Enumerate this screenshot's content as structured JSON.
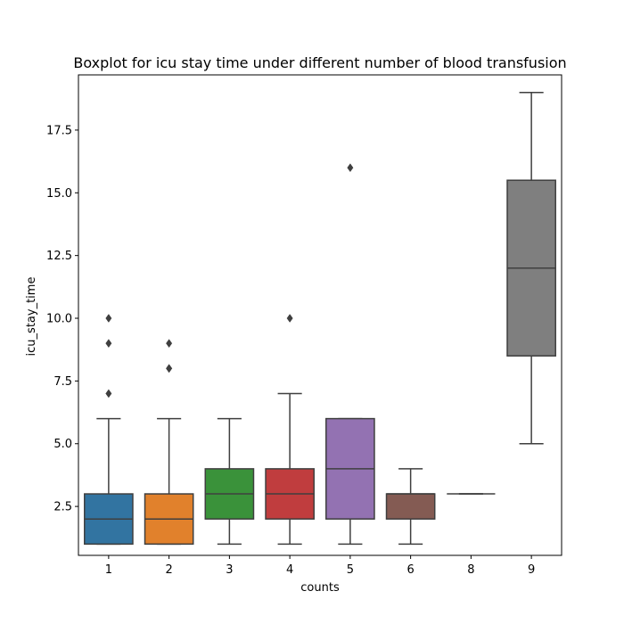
{
  "chart_data": {
    "type": "box",
    "title": "Boxplot for icu stay time under different number of blood transfusion",
    "xlabel": "counts",
    "ylabel": "icu_stay_time",
    "ylim": [
      0.55,
      19.7
    ],
    "yticks": [
      2.5,
      5.0,
      7.5,
      10.0,
      12.5,
      15.0,
      17.5
    ],
    "ytick_labels": [
      "2.5",
      "5.0",
      "7.5",
      "10.0",
      "12.5",
      "15.0",
      "17.5"
    ],
    "grid": false,
    "legend": "none",
    "categories": [
      "1",
      "2",
      "3",
      "4",
      "5",
      "6",
      "8",
      "9"
    ],
    "boxes": [
      {
        "category": "1",
        "whisker_low": 1,
        "q1": 1,
        "median": 2,
        "q3": 3,
        "whisker_high": 6,
        "outliers": [
          7,
          9,
          10
        ],
        "color": "#3274a1"
      },
      {
        "category": "2",
        "whisker_low": 1,
        "q1": 1,
        "median": 2,
        "q3": 3,
        "whisker_high": 6,
        "outliers": [
          8,
          8,
          9
        ],
        "color": "#e1812c"
      },
      {
        "category": "3",
        "whisker_low": 1,
        "q1": 2,
        "median": 3,
        "q3": 4,
        "whisker_high": 6,
        "outliers": [],
        "color": "#3a923a"
      },
      {
        "category": "4",
        "whisker_low": 1,
        "q1": 2,
        "median": 3,
        "q3": 4,
        "whisker_high": 7,
        "outliers": [
          10
        ],
        "color": "#c03d3e"
      },
      {
        "category": "5",
        "whisker_low": 1,
        "q1": 2,
        "median": 4,
        "q3": 6,
        "whisker_high": 6,
        "outliers": [
          16
        ],
        "color": "#9372b2"
      },
      {
        "category": "6",
        "whisker_low": 1,
        "q1": 2,
        "median": 3,
        "q3": 3,
        "whisker_high": 4,
        "outliers": [],
        "color": "#845b53"
      },
      {
        "category": "8",
        "whisker_low": 3,
        "q1": 3,
        "median": 3,
        "q3": 3,
        "whisker_high": 3,
        "outliers": [],
        "color": "#d684bd"
      },
      {
        "category": "9",
        "whisker_low": 5,
        "q1": 8.5,
        "median": 12,
        "q3": 15.5,
        "whisker_high": 19,
        "outliers": [],
        "color": "#7f7f7f"
      }
    ],
    "line_color": "#3f3f3f"
  }
}
